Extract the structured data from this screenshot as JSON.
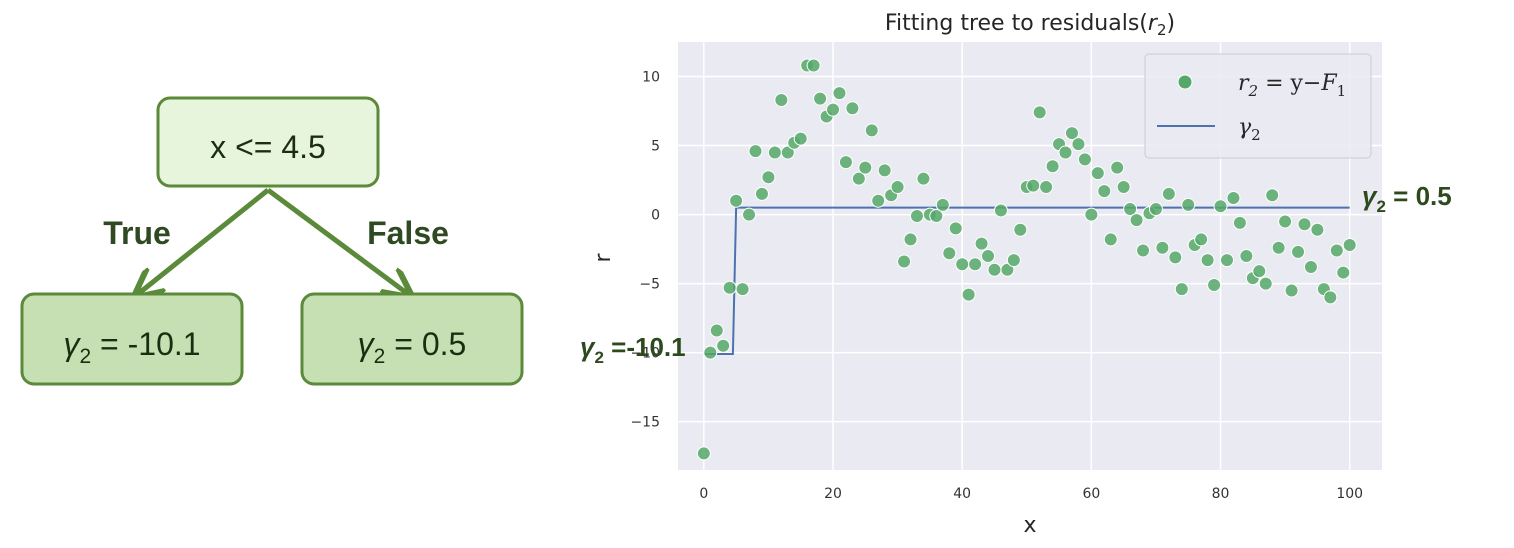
{
  "tree": {
    "root_label": "x <= 4.5",
    "true_label": "True",
    "false_label": "False",
    "left_leaf": {
      "symbol": "γ",
      "sub": "2",
      "value": " = -10.1"
    },
    "right_leaf": {
      "symbol": "γ",
      "sub": "2",
      "value": " = 0.5"
    },
    "node_fill": "#e7f5dc",
    "leaf_fill": "#c6e0b4",
    "edge_color": "#5a8a3a"
  },
  "chart_data": {
    "type": "scatter",
    "title_prefix": "Fitting tree to residuals(",
    "title_var": "r",
    "title_sub": "2",
    "title_suffix": ")",
    "xlabel": "x",
    "ylabel": "r",
    "xlim": [
      -4,
      105
    ],
    "ylim": [
      -18.5,
      12.5
    ],
    "xticks": [
      0,
      20,
      40,
      60,
      80,
      100
    ],
    "yticks": [
      -15,
      -10,
      -5,
      0,
      5,
      10
    ],
    "xtick_labels": [
      "0",
      "20",
      "40",
      "60",
      "80",
      "100"
    ],
    "ytick_labels": [
      "−15",
      "−10",
      "−5",
      "0",
      "5",
      "10"
    ],
    "grid": true,
    "legend_position": "top-right",
    "point_color": "#55a868",
    "line_color": "#4c72b0",
    "background": "#eaeaf2",
    "legend": {
      "points_label": {
        "r": "r",
        "sub": "2",
        "eq": " = y−",
        "F": "F",
        "Fsub": "1"
      },
      "line_label": {
        "sym": "γ",
        "sub": "2"
      }
    },
    "line": {
      "x": [
        0,
        4.5,
        5,
        100
      ],
      "y": [
        -10.1,
        -10.1,
        0.5,
        0.5
      ]
    },
    "points": [
      [
        0,
        -17.3
      ],
      [
        1,
        -10.0
      ],
      [
        2,
        -8.4
      ],
      [
        3,
        -9.5
      ],
      [
        4,
        -5.3
      ],
      [
        5,
        1.0
      ],
      [
        6,
        -5.4
      ],
      [
        7,
        0.0
      ],
      [
        8,
        4.6
      ],
      [
        9,
        1.5
      ],
      [
        10,
        2.7
      ],
      [
        11,
        4.5
      ],
      [
        12,
        8.3
      ],
      [
        13,
        4.5
      ],
      [
        14,
        5.2
      ],
      [
        15,
        5.5
      ],
      [
        16,
        10.8
      ],
      [
        17,
        10.8
      ],
      [
        18,
        8.4
      ],
      [
        19,
        7.1
      ],
      [
        20,
        7.6
      ],
      [
        21,
        8.8
      ],
      [
        22,
        3.8
      ],
      [
        23,
        7.7
      ],
      [
        24,
        2.6
      ],
      [
        25,
        3.4
      ],
      [
        26,
        6.1
      ],
      [
        27,
        1.0
      ],
      [
        28,
        3.2
      ],
      [
        29,
        1.4
      ],
      [
        30,
        2.0
      ],
      [
        31,
        -3.4
      ],
      [
        32,
        -1.8
      ],
      [
        33,
        -0.1
      ],
      [
        34,
        2.6
      ],
      [
        35,
        0.0
      ],
      [
        36,
        -0.1
      ],
      [
        37,
        0.7
      ],
      [
        38,
        -2.8
      ],
      [
        39,
        -1.0
      ],
      [
        40,
        -3.6
      ],
      [
        41,
        -5.8
      ],
      [
        42,
        -3.6
      ],
      [
        43,
        -2.1
      ],
      [
        44,
        -3.0
      ],
      [
        45,
        -4.0
      ],
      [
        46,
        0.3
      ],
      [
        47,
        -4.0
      ],
      [
        48,
        -3.3
      ],
      [
        49,
        -1.1
      ],
      [
        50,
        2.0
      ],
      [
        51,
        2.1
      ],
      [
        52,
        7.4
      ],
      [
        53,
        2.0
      ],
      [
        54,
        3.5
      ],
      [
        55,
        5.1
      ],
      [
        56,
        4.5
      ],
      [
        57,
        5.9
      ],
      [
        58,
        5.1
      ],
      [
        59,
        4.0
      ],
      [
        60,
        0.0
      ],
      [
        61,
        3.0
      ],
      [
        62,
        1.7
      ],
      [
        63,
        -1.8
      ],
      [
        64,
        3.4
      ],
      [
        65,
        2.0
      ],
      [
        66,
        0.4
      ],
      [
        67,
        -0.4
      ],
      [
        68,
        -2.6
      ],
      [
        69,
        0.1
      ],
      [
        70,
        0.4
      ],
      [
        71,
        -2.4
      ],
      [
        72,
        1.5
      ],
      [
        73,
        -3.1
      ],
      [
        74,
        -5.4
      ],
      [
        75,
        0.7
      ],
      [
        76,
        -2.2
      ],
      [
        77,
        -1.8
      ],
      [
        78,
        -3.3
      ],
      [
        79,
        -5.1
      ],
      [
        80,
        0.6
      ],
      [
        81,
        -3.3
      ],
      [
        82,
        1.2
      ],
      [
        83,
        -0.6
      ],
      [
        84,
        -3.0
      ],
      [
        85,
        -4.6
      ],
      [
        86,
        -4.1
      ],
      [
        87,
        -5.0
      ],
      [
        88,
        1.4
      ],
      [
        89,
        -2.4
      ],
      [
        90,
        -0.5
      ],
      [
        91,
        -5.5
      ],
      [
        92,
        -2.7
      ],
      [
        93,
        -0.7
      ],
      [
        94,
        -3.8
      ],
      [
        95,
        -1.1
      ],
      [
        96,
        -5.4
      ],
      [
        97,
        -6.0
      ],
      [
        98,
        -2.6
      ],
      [
        99,
        -4.2
      ],
      [
        100,
        -2.2
      ]
    ]
  },
  "annotations": {
    "left": {
      "symbol": "γ",
      "sub": "2",
      "value": " =-10.1"
    },
    "right": {
      "symbol": "γ",
      "sub": "2",
      "value": " = 0.5"
    }
  }
}
